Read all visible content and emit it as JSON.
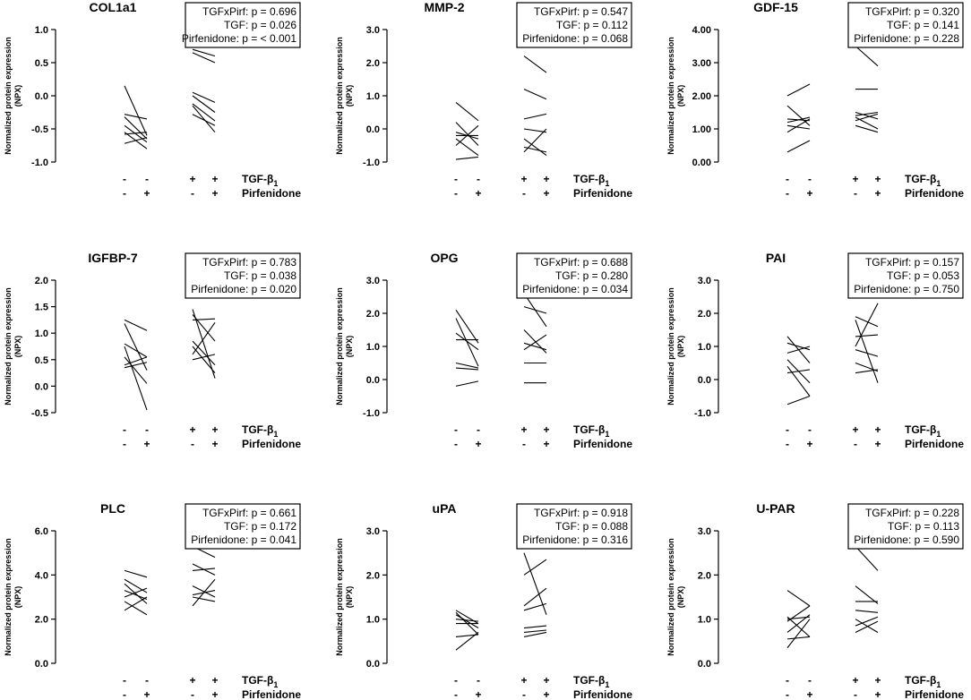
{
  "figure": {
    "y_label_line1": "Normalized protein expression",
    "y_label_line2": "(NPX)",
    "condition_labels": [
      "TGF-β",
      "Pirfenidone"
    ],
    "tgf_subscript": "1",
    "tgf_signs": [
      "-",
      "-",
      "+",
      "+"
    ],
    "pirf_signs": [
      "-",
      "+",
      "-",
      "+"
    ]
  },
  "chart_data": [
    {
      "type": "line",
      "title": "COL1a1",
      "x": [
        "TGF-β1 − / Pirfenidone −",
        "TGF-β1 − / Pirfenidone +",
        "TGF-β1 + / Pirfenidone −",
        "TGF-β1 + / Pirfenidone +"
      ],
      "ylim": [
        -1.0,
        1.0
      ],
      "yticks": [
        -1.0,
        -0.5,
        0.0,
        0.5,
        1.0
      ],
      "decimals": 1,
      "stats": [
        "TGFxPirf: p = 0.696",
        "TGF: p = 0.026",
        "Pirfenidone: p = < 0.001"
      ],
      "pairs_untreated": [
        [
          0.15,
          -0.6
        ],
        [
          -0.28,
          -0.35
        ],
        [
          -0.32,
          -0.65
        ],
        [
          -0.45,
          -0.7
        ],
        [
          -0.55,
          -0.8
        ],
        [
          -0.58,
          -0.55
        ],
        [
          -0.72,
          -0.63
        ]
      ],
      "pairs_tgf": [
        [
          0.7,
          0.6
        ],
        [
          0.65,
          0.5
        ],
        [
          0.05,
          -0.1
        ],
        [
          0.0,
          -0.25
        ],
        [
          -0.12,
          -0.38
        ],
        [
          -0.15,
          -0.55
        ],
        [
          -0.28,
          -0.45
        ]
      ]
    },
    {
      "type": "line",
      "title": "MMP-2",
      "x": [
        "TGF-β1 − / Pirfenidone −",
        "TGF-β1 − / Pirfenidone +",
        "TGF-β1 + / Pirfenidone −",
        "TGF-β1 + / Pirfenidone +"
      ],
      "ylim": [
        -1.0,
        3.0
      ],
      "yticks": [
        -1.0,
        0.0,
        1.0,
        2.0,
        3.0
      ],
      "decimals": 1,
      "stats": [
        "TGFxPirf: p = 0.547",
        "TGF: p = 0.112",
        "Pirfenidone: p = 0.068"
      ],
      "pairs_untreated": [
        [
          0.8,
          0.25
        ],
        [
          0.2,
          -0.5
        ],
        [
          -0.1,
          -0.3
        ],
        [
          -0.2,
          -0.2
        ],
        [
          -0.3,
          -0.8
        ],
        [
          -0.5,
          0.1
        ],
        [
          -0.92,
          -0.85
        ]
      ],
      "pairs_tgf": [
        [
          2.2,
          1.7
        ],
        [
          1.2,
          0.9
        ],
        [
          0.3,
          0.45
        ],
        [
          0.0,
          -0.1
        ],
        [
          -0.3,
          -0.8
        ],
        [
          -0.55,
          -0.7
        ],
        [
          -0.7,
          0.0
        ]
      ]
    },
    {
      "type": "line",
      "title": "GDF-15",
      "x": [
        "TGF-β1 − / Pirfenidone −",
        "TGF-β1 − / Pirfenidone +",
        "TGF-β1 + / Pirfenidone −",
        "TGF-β1 + / Pirfenidone +"
      ],
      "ylim": [
        0.0,
        4.0
      ],
      "yticks": [
        0.0,
        1.0,
        2.0,
        3.0,
        4.0
      ],
      "decimals": 2,
      "stats": [
        "TGFxPirf: p = 0.320",
        "TGF: p = 0.141",
        "Pirfenidone: p = 0.228"
      ],
      "pairs_untreated": [
        [
          2.0,
          2.35
        ],
        [
          1.7,
          1.1
        ],
        [
          1.3,
          1.25
        ],
        [
          1.2,
          1.35
        ],
        [
          1.1,
          1.0
        ],
        [
          0.9,
          1.3
        ],
        [
          0.3,
          0.65
        ]
      ],
      "pairs_tgf": [
        [
          3.5,
          2.9
        ],
        [
          2.2,
          2.2
        ],
        [
          1.5,
          1.3
        ],
        [
          1.4,
          1.5
        ],
        [
          1.35,
          1.0
        ],
        [
          1.25,
          1.45
        ],
        [
          1.1,
          0.9
        ]
      ]
    },
    {
      "type": "line",
      "title": "IGFBP-7",
      "x": [
        "TGF-β1 − / Pirfenidone −",
        "TGF-β1 − / Pirfenidone +",
        "TGF-β1 + / Pirfenidone −",
        "TGF-β1 + / Pirfenidone +"
      ],
      "ylim": [
        -0.5,
        2.0
      ],
      "yticks": [
        -0.5,
        0.0,
        0.5,
        1.0,
        1.5,
        2.0
      ],
      "decimals": 1,
      "stats": [
        "TGFxPirf: p = 0.783",
        "TGF: p = 0.038",
        "Pirfenidone: p = 0.020"
      ],
      "pairs_untreated": [
        [
          1.25,
          1.05
        ],
        [
          1.18,
          0.3
        ],
        [
          0.8,
          0.55
        ],
        [
          0.75,
          -0.45
        ],
        [
          0.55,
          0.05
        ],
        [
          0.4,
          0.55
        ],
        [
          0.35,
          0.45
        ]
      ],
      "pairs_tgf": [
        [
          1.45,
          0.15
        ],
        [
          1.35,
          0.85
        ],
        [
          1.25,
          1.27
        ],
        [
          0.85,
          0.4
        ],
        [
          0.75,
          0.25
        ],
        [
          0.6,
          1.2
        ],
        [
          0.5,
          0.6
        ]
      ]
    },
    {
      "type": "line",
      "title": "OPG",
      "x": [
        "TGF-β1 − / Pirfenidone −",
        "TGF-β1 − / Pirfenidone +",
        "TGF-β1 + / Pirfenidone −",
        "TGF-β1 + / Pirfenidone +"
      ],
      "ylim": [
        -1.0,
        3.0
      ],
      "yticks": [
        -1.0,
        0.0,
        1.0,
        2.0,
        3.0
      ],
      "decimals": 1,
      "stats": [
        "TGFxPirf: p = 0.688",
        "TGF: p = 0.280",
        "Pirfenidone: p = 0.034"
      ],
      "pairs_untreated": [
        [
          2.1,
          1.1
        ],
        [
          1.85,
          0.4
        ],
        [
          1.4,
          0.9
        ],
        [
          1.2,
          1.2
        ],
        [
          0.5,
          0.35
        ],
        [
          0.35,
          0.3
        ],
        [
          -0.2,
          -0.05
        ]
      ],
      "pairs_tgf": [
        [
          2.6,
          1.6
        ],
        [
          2.2,
          2.0
        ],
        [
          1.5,
          0.8
        ],
        [
          1.1,
          0.9
        ],
        [
          0.9,
          1.35
        ],
        [
          0.5,
          0.5
        ],
        [
          -0.1,
          -0.1
        ]
      ]
    },
    {
      "type": "line",
      "title": "PAI",
      "x": [
        "TGF-β1 − / Pirfenidone −",
        "TGF-β1 − / Pirfenidone +",
        "TGF-β1 + / Pirfenidone −",
        "TGF-β1 + / Pirfenidone +"
      ],
      "ylim": [
        -1.0,
        3.0
      ],
      "yticks": [
        -1.0,
        0.0,
        1.0,
        2.0,
        3.0
      ],
      "decimals": 1,
      "stats": [
        "TGFxPirf: p = 0.157",
        "TGF: p = 0.053",
        "Pirfenidone: p = 0.750"
      ],
      "pairs_untreated": [
        [
          1.3,
          0.5
        ],
        [
          1.1,
          0.9
        ],
        [
          0.8,
          1.0
        ],
        [
          0.6,
          -0.1
        ],
        [
          0.4,
          -0.5
        ],
        [
          0.2,
          0.3
        ],
        [
          -0.75,
          -0.5
        ]
      ],
      "pairs_tgf": [
        [
          1.9,
          1.6
        ],
        [
          1.8,
          -0.1
        ],
        [
          1.3,
          1.35
        ],
        [
          1.0,
          2.3
        ],
        [
          0.9,
          0.7
        ],
        [
          0.5,
          0.25
        ],
        [
          0.2,
          0.3
        ]
      ]
    },
    {
      "type": "line",
      "title": "PLC",
      "x": [
        "TGF-β1 − / Pirfenidone −",
        "TGF-β1 − / Pirfenidone +",
        "TGF-β1 + / Pirfenidone −",
        "TGF-β1 + / Pirfenidone +"
      ],
      "ylim": [
        0.0,
        6.0
      ],
      "yticks": [
        0.0,
        2.0,
        4.0,
        6.0
      ],
      "decimals": 1,
      "stats": [
        "TGFxPirf: p = 0.661",
        "TGF: p = 0.172",
        "Pirfenidone: p = 0.041"
      ],
      "pairs_untreated": [
        [
          4.2,
          3.9
        ],
        [
          3.8,
          3.2
        ],
        [
          3.6,
          2.7
        ],
        [
          3.3,
          2.9
        ],
        [
          3.0,
          3.4
        ],
        [
          2.8,
          2.2
        ],
        [
          2.4,
          3.0
        ]
      ],
      "pairs_tgf": [
        [
          5.3,
          4.8
        ],
        [
          4.5,
          4.0
        ],
        [
          4.2,
          4.3
        ],
        [
          3.5,
          3.0
        ],
        [
          3.1,
          3.3
        ],
        [
          3.0,
          2.8
        ],
        [
          2.6,
          3.8
        ]
      ]
    },
    {
      "type": "line",
      "title": "uPA",
      "x": [
        "TGF-β1 − / Pirfenidone −",
        "TGF-β1 − / Pirfenidone +",
        "TGF-β1 + / Pirfenidone −",
        "TGF-β1 + / Pirfenidone +"
      ],
      "ylim": [
        0.0,
        3.0
      ],
      "yticks": [
        0.0,
        1.0,
        2.0,
        3.0
      ],
      "decimals": 1,
      "stats": [
        "TGFxPirf: p = 0.918",
        "TGF: p = 0.088",
        "Pirfenidone: p = 0.316"
      ],
      "pairs_untreated": [
        [
          1.2,
          0.9
        ],
        [
          1.15,
          0.65
        ],
        [
          1.1,
          0.8
        ],
        [
          1.0,
          0.95
        ],
        [
          0.9,
          0.9
        ],
        [
          0.6,
          0.65
        ],
        [
          0.3,
          0.7
        ]
      ],
      "pairs_tgf": [
        [
          2.5,
          1.1
        ],
        [
          2.0,
          2.35
        ],
        [
          1.3,
          1.7
        ],
        [
          1.2,
          1.35
        ],
        [
          0.8,
          0.85
        ],
        [
          0.7,
          0.75
        ],
        [
          0.6,
          0.7
        ]
      ]
    },
    {
      "type": "line",
      "title": "U-PAR",
      "x": [
        "TGF-β1 − / Pirfenidone −",
        "TGF-β1 − / Pirfenidone +",
        "TGF-β1 + / Pirfenidone −",
        "TGF-β1 + / Pirfenidone +"
      ],
      "ylim": [
        0.0,
        3.0
      ],
      "yticks": [
        0.0,
        1.0,
        2.0,
        3.0
      ],
      "decimals": 1,
      "stats": [
        "TGFxPirf: p = 0.228",
        "TGF: p = 0.113",
        "Pirfenidone: p = 0.590"
      ],
      "pairs_untreated": [
        [
          1.65,
          1.3
        ],
        [
          1.05,
          0.6
        ],
        [
          1.0,
          1.05
        ],
        [
          0.95,
          1.3
        ],
        [
          0.7,
          1.1
        ],
        [
          0.55,
          0.6
        ],
        [
          0.35,
          1.0
        ]
      ],
      "pairs_tgf": [
        [
          2.65,
          2.1
        ],
        [
          1.75,
          1.35
        ],
        [
          1.4,
          1.4
        ],
        [
          1.2,
          1.15
        ],
        [
          1.0,
          0.7
        ],
        [
          0.85,
          1.05
        ],
        [
          0.7,
          0.95
        ]
      ]
    }
  ]
}
